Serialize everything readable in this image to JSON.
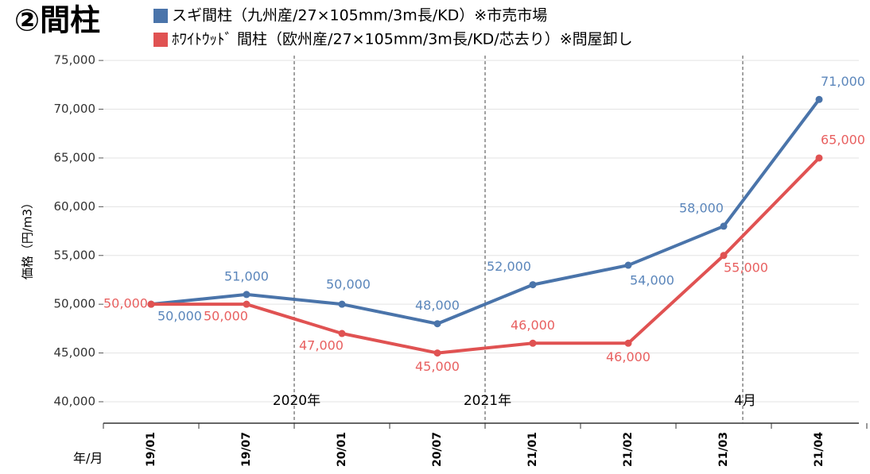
{
  "chart_data": {
    "type": "line",
    "title": "②間柱",
    "y_label": "価格（円/m3）",
    "x_label": "年/月",
    "categories": [
      "19/01",
      "19/07",
      "20/01",
      "20/07",
      "21/01",
      "21/02",
      "21/03",
      "21/04"
    ],
    "series": [
      {
        "name": "スギ間柱（九州産/27×105mm/3m長/KD）※市売市場",
        "color": "#4a74aa",
        "values": [
          50000,
          51000,
          50000,
          48000,
          52000,
          54000,
          58000,
          71000
        ],
        "value_labels": [
          "50,000",
          "51,000",
          "50,000",
          "48,000",
          "52,000",
          "54,000",
          "58,000",
          "71,000"
        ]
      },
      {
        "name": "ﾎﾜｲﾄｳｯﾄﾞ 間柱（欧州産/27×105mm/3m長/KD/芯去り）※問屋卸し",
        "color": "#e05252",
        "values": [
          50000,
          50000,
          47000,
          45000,
          46000,
          46000,
          55000,
          65000
        ],
        "value_labels": [
          "50,000",
          "50,000",
          "47,000",
          "45,000",
          "46,000",
          "46,000",
          "55,000",
          "65,000"
        ]
      }
    ],
    "annotations": [
      "2020年",
      "2021年",
      "4月"
    ],
    "ylim": [
      37800,
      75500
    ],
    "yticks": [
      {
        "value": 40000,
        "label": "40,000"
      },
      {
        "value": 45000,
        "label": "45,000"
      },
      {
        "value": 50000,
        "label": "50,000"
      },
      {
        "value": 55000,
        "label": "55,000"
      },
      {
        "value": 60000,
        "label": "60,000"
      },
      {
        "value": 65000,
        "label": "65,000"
      },
      {
        "value": 70000,
        "label": "70,000"
      },
      {
        "value": 75000,
        "label": "75,000"
      }
    ],
    "grid": true
  }
}
